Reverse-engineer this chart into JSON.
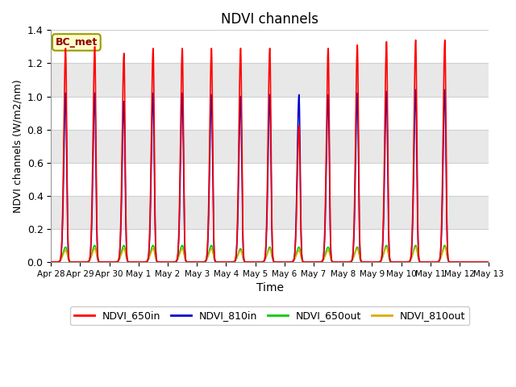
{
  "title": "NDVI channels",
  "xlabel": "Time",
  "ylabel": "NDVI channels (W/m2/nm)",
  "ylim": [
    0,
    1.4
  ],
  "yticks": [
    0.0,
    0.2,
    0.4,
    0.6,
    0.8,
    1.0,
    1.2,
    1.4
  ],
  "annotation": "BC_met",
  "colors": {
    "NDVI_650in": "#ff0000",
    "NDVI_810in": "#0000cc",
    "NDVI_650out": "#00cc00",
    "NDVI_810out": "#ddaa00"
  },
  "n_days": 15,
  "peak_heights_650in": [
    1.29,
    1.3,
    1.26,
    1.29,
    1.29,
    1.29,
    1.29,
    1.29,
    0.82,
    1.29,
    1.31,
    1.33,
    1.34,
    1.34
  ],
  "peak_heights_810in": [
    1.02,
    1.02,
    0.97,
    1.02,
    1.02,
    1.01,
    1.0,
    1.01,
    1.01,
    1.01,
    1.02,
    1.03,
    1.04,
    1.04
  ],
  "peak_heights_650out": [
    0.09,
    0.1,
    0.1,
    0.1,
    0.1,
    0.1,
    0.08,
    0.09,
    0.09,
    0.09,
    0.09,
    0.1,
    0.1,
    0.1
  ],
  "peak_heights_810out": [
    0.07,
    0.08,
    0.08,
    0.08,
    0.08,
    0.08,
    0.07,
    0.08,
    0.07,
    0.07,
    0.08,
    0.09,
    0.09,
    0.09
  ],
  "fig_bg": "#ffffff",
  "band_colors": [
    "#ffffff",
    "#e8e8e8"
  ],
  "grid_line_color": "#d0d0d0",
  "tick_labels": [
    "Apr 28",
    "Apr 29",
    "Apr 30",
    "May 1",
    "May 2",
    "May 3",
    "May 4",
    "May 5",
    "May 6",
    "May 7",
    "May 8",
    "May 9",
    "May 10",
    "May 11",
    "May 12",
    "May 13"
  ]
}
